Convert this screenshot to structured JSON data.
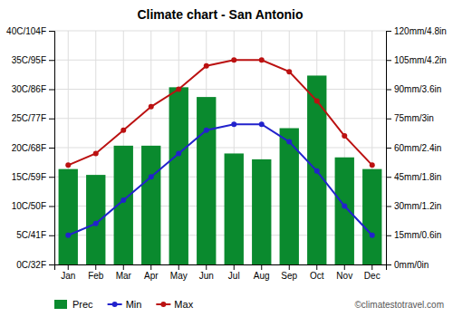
{
  "chart_data": {
    "type": "bar",
    "title": "Climate chart - San Antonio",
    "categories": [
      "Jan",
      "Feb",
      "Mar",
      "Apr",
      "May",
      "Jun",
      "Jul",
      "Aug",
      "Sep",
      "Oct",
      "Nov",
      "Dec"
    ],
    "series": [
      {
        "name": "Prec",
        "type": "bar",
        "axis": "y2",
        "color": "#0a8a2e",
        "values": [
          49,
          46,
          61,
          61,
          91,
          86,
          57,
          54,
          70,
          97,
          55,
          49
        ]
      },
      {
        "name": "Min",
        "type": "line",
        "marker": "circle",
        "color": "#2222cc",
        "values": [
          5,
          7,
          11,
          15,
          19,
          23,
          24,
          24,
          21,
          16,
          10,
          5
        ]
      },
      {
        "name": "Max",
        "type": "line",
        "marker": "circle",
        "color": "#bb1111",
        "values": [
          17,
          19,
          23,
          27,
          30,
          34,
          35,
          35,
          33,
          28,
          22,
          17
        ]
      }
    ],
    "ylim": [
      0,
      40
    ],
    "yticks": [
      {
        "value": 0,
        "label": "0C/32F"
      },
      {
        "value": 5,
        "label": "5C/41F"
      },
      {
        "value": 10,
        "label": "10C/50F"
      },
      {
        "value": 15,
        "label": "15C/59F"
      },
      {
        "value": 20,
        "label": "20C/68F"
      },
      {
        "value": 25,
        "label": "25C/77F"
      },
      {
        "value": 30,
        "label": "30C/86F"
      },
      {
        "value": 35,
        "label": "35C/95F"
      },
      {
        "value": 40,
        "label": "40C/104F"
      }
    ],
    "y2lim": [
      0,
      120
    ],
    "y2ticks": [
      {
        "value": 0,
        "label": "0mm/0in"
      },
      {
        "value": 15,
        "label": "15mm/0.6in"
      },
      {
        "value": 30,
        "label": "30mm/1.2in"
      },
      {
        "value": 45,
        "label": "45mm/1.8in"
      },
      {
        "value": 60,
        "label": "60mm/2.4in"
      },
      {
        "value": 75,
        "label": "75mm/3in"
      },
      {
        "value": 90,
        "label": "90mm/3.6in"
      },
      {
        "value": 105,
        "label": "105mm/4.2in"
      },
      {
        "value": 120,
        "label": "120mm/4.8in"
      }
    ],
    "grid": true,
    "legend": "lower left",
    "annotations": [
      "©climatestotravel.com"
    ]
  }
}
